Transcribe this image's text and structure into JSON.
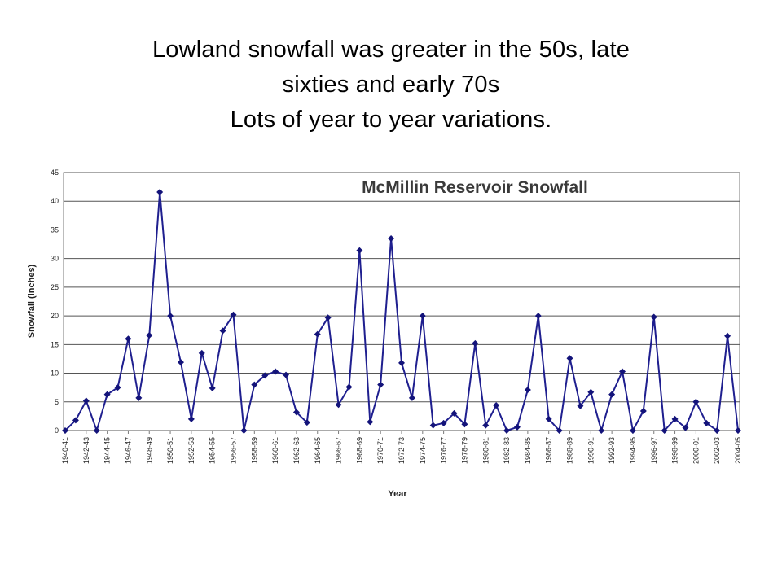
{
  "slide": {
    "title_line1": "Lowland snowfall was greater in the 50s, late",
    "title_line2": "sixties and early 70s",
    "title_line3": "Lots of year to year variations."
  },
  "chart_data": {
    "type": "line",
    "title": "McMillin Reservoir Snowfall",
    "xlabel": "Year",
    "ylabel": "Snowfall (inches)",
    "ylim": [
      0,
      45
    ],
    "y_ticks": [
      0,
      5,
      10,
      15,
      20,
      25,
      30,
      35,
      40,
      45
    ],
    "grid": true,
    "legend": "none",
    "colors": {
      "line": "#1f1f8f",
      "marker": "#13137a",
      "grid": "#555555"
    },
    "x_tick_labels": [
      "1940-41",
      "1942-43",
      "1944-45",
      "1946-47",
      "1948-49",
      "1950-51",
      "1952-53",
      "1954-55",
      "1956-57",
      "1958-59",
      "1960-61",
      "1962-63",
      "1964-65",
      "1966-67",
      "1968-69",
      "1970-71",
      "1972-73",
      "1974-75",
      "1976-77",
      "1978-79",
      "1980-81",
      "1982-83",
      "1984-85",
      "1986-87",
      "1988-89",
      "1990-91",
      "1992-93",
      "1994-95",
      "1996-97",
      "1998-99",
      "2000-01",
      "2002-03",
      "2004-05"
    ],
    "x": [
      "1940-41",
      "1941-42",
      "1942-43",
      "1943-44",
      "1944-45",
      "1945-46",
      "1946-47",
      "1947-48",
      "1948-49",
      "1949-50",
      "1950-51",
      "1951-52",
      "1952-53",
      "1953-54",
      "1954-55",
      "1955-56",
      "1956-57",
      "1957-58",
      "1958-59",
      "1959-60",
      "1960-61",
      "1961-62",
      "1962-63",
      "1963-64",
      "1964-65",
      "1965-66",
      "1966-67",
      "1967-68",
      "1968-69",
      "1969-70",
      "1970-71",
      "1971-72",
      "1972-73",
      "1973-74",
      "1974-75",
      "1975-76",
      "1976-77",
      "1977-78",
      "1978-79",
      "1979-80",
      "1980-81",
      "1981-82",
      "1982-83",
      "1983-84",
      "1984-85",
      "1985-86",
      "1986-87",
      "1987-88",
      "1988-89",
      "1989-90",
      "1990-91",
      "1991-92",
      "1992-93",
      "1993-94",
      "1994-95",
      "1995-96",
      "1996-97",
      "1997-98",
      "1998-99",
      "1999-00",
      "2000-01",
      "2001-02",
      "2002-03",
      "2003-04",
      "2004-05"
    ],
    "series": [
      {
        "values": [
          0,
          1.8,
          5.2,
          0,
          6.3,
          7.5,
          16,
          5.7,
          16.6,
          41.6,
          20,
          11.9,
          2,
          13.5,
          7.4,
          17.4,
          20.2,
          0,
          8,
          9.6,
          10.3,
          9.7,
          3.2,
          1.4,
          16.8,
          19.7,
          4.5,
          7.6,
          31.4,
          1.5,
          8,
          33.5,
          11.8,
          5.7,
          20,
          0.9,
          1.3,
          3,
          1.1,
          15.2,
          0.9,
          4.4,
          0,
          0.6,
          7.1,
          20,
          2,
          0,
          12.6,
          4.3,
          6.7,
          0,
          6.3,
          10.3,
          0,
          3.4,
          19.8,
          0,
          2,
          0.5,
          5,
          1.3,
          0,
          16.5,
          0
        ]
      }
    ]
  }
}
